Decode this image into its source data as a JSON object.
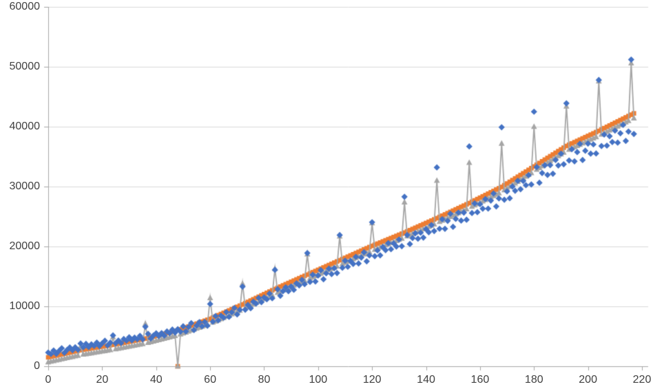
{
  "chart_data": {
    "type": "scatter",
    "title": "",
    "xlabel": "",
    "ylabel": "",
    "xlim": [
      0,
      220
    ],
    "ylim": [
      0,
      60000
    ],
    "x_ticks": [
      0,
      20,
      40,
      60,
      80,
      100,
      120,
      140,
      160,
      180,
      200,
      220
    ],
    "y_ticks": [
      0,
      10000,
      20000,
      30000,
      40000,
      50000,
      60000
    ],
    "grid": true,
    "legend": "none",
    "colors": {
      "series1_blue": "#4472C4",
      "series2_orange": "#ED7D31",
      "series3_gray": "#A5A5A5",
      "gridline": "#D9D9D9",
      "axis_line": "#A6A6A6",
      "tick_text": "#404040",
      "background": "#FFFFFF"
    },
    "x_start": 0,
    "x_step": 1,
    "series": [
      {
        "name": "series-2-orange",
        "marker": "square",
        "color": "#ED7D31",
        "line": false,
        "values": [
          1500,
          1600,
          1700,
          1800,
          1900,
          2000,
          2100,
          2200,
          2300,
          2400,
          2500,
          2600,
          2700,
          2775,
          2850,
          2925,
          3000,
          3075,
          3150,
          3225,
          3300,
          3375,
          3450,
          3525,
          3600,
          3685,
          3770,
          3855,
          3940,
          4025,
          4110,
          4195,
          4280,
          4365,
          4450,
          4535,
          4620,
          4735,
          4850,
          4965,
          5080,
          5195,
          5310,
          5425,
          5540,
          5655,
          5770,
          5885,
          0,
          6160,
          6320,
          6480,
          6640,
          6800,
          6960,
          7120,
          7280,
          7440,
          7600,
          7760,
          7920,
          8120,
          8320,
          8520,
          8720,
          8920,
          9120,
          9320,
          9520,
          9720,
          9920,
          10120,
          10320,
          10535,
          10750,
          10965,
          11180,
          11395,
          11610,
          11825,
          12040,
          12255,
          12470,
          12685,
          12900,
          13100,
          13300,
          13500,
          13700,
          13900,
          14100,
          14300,
          14500,
          14700,
          14900,
          15100,
          15300,
          15500,
          15700,
          15900,
          16100,
          16300,
          16500,
          16700,
          16900,
          17100,
          17300,
          17500,
          17700,
          17900,
          18100,
          18300,
          18500,
          18700,
          18900,
          19100,
          19300,
          19500,
          19700,
          19900,
          20100,
          20285,
          20470,
          20655,
          20840,
          21025,
          21210,
          21395,
          21580,
          21765,
          21950,
          22135,
          22320,
          22520,
          22720,
          22920,
          23120,
          23320,
          23520,
          23720,
          23920,
          24120,
          24320,
          24520,
          24720,
          24930,
          25140,
          25350,
          25560,
          25770,
          25980,
          26190,
          26400,
          26610,
          26820,
          27030,
          27240,
          27465,
          27690,
          27915,
          28140,
          28365,
          28590,
          28815,
          29040,
          29265,
          29490,
          29715,
          29940,
          30225,
          30510,
          30795,
          31080,
          31365,
          31650,
          31935,
          32220,
          32505,
          32790,
          33075,
          33360,
          33645,
          33930,
          34215,
          34500,
          34785,
          35070,
          35355,
          35640,
          35925,
          36210,
          36495,
          36780,
          36990,
          37200,
          37410,
          37620,
          37830,
          38040,
          38250,
          38460,
          38670,
          38880,
          39090,
          39300,
          39525,
          39750,
          39975,
          40200,
          40425,
          40650,
          40875,
          41100,
          41325,
          41550,
          41775,
          42000,
          42225
        ]
      },
      {
        "name": "series-3-gray",
        "marker": "triangle",
        "color": "#A5A5A5",
        "line": true,
        "values": [
          700,
          800,
          900,
          1000,
          1100,
          1200,
          1300,
          1400,
          1500,
          1600,
          1700,
          1800,
          3300,
          1975,
          2050,
          2125,
          2200,
          2275,
          2350,
          2425,
          2500,
          2575,
          2650,
          2725,
          4900,
          2885,
          2970,
          3055,
          3140,
          3225,
          3310,
          3395,
          3480,
          3565,
          3650,
          3735,
          7100,
          3935,
          4050,
          4165,
          4280,
          4395,
          4510,
          4625,
          4740,
          4855,
          4970,
          5085,
          0,
          5360,
          5520,
          5680,
          5840,
          6000,
          6160,
          6320,
          6480,
          6640,
          6800,
          6960,
          11400,
          7320,
          7520,
          7720,
          7920,
          8120,
          8320,
          8520,
          8720,
          8920,
          9120,
          9320,
          13800,
          9735,
          9950,
          10165,
          10380,
          10595,
          10810,
          11025,
          11240,
          11455,
          11670,
          11885,
          16300,
          12300,
          12500,
          12700,
          12900,
          13100,
          13300,
          13500,
          13700,
          13900,
          14100,
          14300,
          18700,
          14700,
          14900,
          15100,
          15300,
          15500,
          15700,
          15900,
          16100,
          16300,
          16500,
          16700,
          21700,
          17100,
          17300,
          17500,
          17700,
          17900,
          18100,
          18300,
          18500,
          18700,
          18900,
          19100,
          23900,
          19485,
          19670,
          19855,
          20040,
          20225,
          20410,
          20595,
          20780,
          20965,
          21150,
          21335,
          27400,
          21720,
          21920,
          22120,
          22320,
          22520,
          22720,
          22920,
          23120,
          23320,
          23520,
          23720,
          31000,
          24130,
          24340,
          24550,
          24760,
          24970,
          25180,
          25390,
          25600,
          25810,
          26020,
          26230,
          34000,
          26665,
          26890,
          27115,
          27340,
          27565,
          27790,
          28015,
          28240,
          28465,
          28690,
          28915,
          37200,
          29425,
          29710,
          29995,
          30280,
          30565,
          30850,
          31135,
          31420,
          31705,
          31990,
          32275,
          40000,
          32845,
          33130,
          33415,
          33700,
          33985,
          34270,
          34555,
          34840,
          35125,
          35410,
          35695,
          43400,
          36190,
          36400,
          36610,
          36820,
          37030,
          37240,
          37450,
          37660,
          37870,
          38080,
          38290,
          47600,
          38725,
          38950,
          39175,
          39400,
          39625,
          39850,
          40075,
          40300,
          40525,
          40750,
          40975,
          50600,
          41425
        ]
      },
      {
        "name": "series-1-blue",
        "marker": "diamond",
        "color": "#4472C4",
        "line": false,
        "values": [
          2300,
          2040,
          2630,
          2080,
          2570,
          3010,
          2250,
          2740,
          3140,
          2680,
          3170,
          2760,
          3800,
          3170,
          3740,
          3200,
          3670,
          3390,
          3960,
          3380,
          3840,
          4260,
          3480,
          3950,
          5150,
          3840,
          4310,
          3880,
          4550,
          4280,
          4850,
          4320,
          4790,
          4510,
          5080,
          4500,
          6600,
          5410,
          4640,
          5130,
          5510,
          5050,
          5540,
          5120,
          5810,
          5540,
          6130,
          5620,
          6200,
          5800,
          6680,
          5830,
          6560,
          7210,
          6060,
          6790,
          7370,
          6670,
          7400,
          6770,
          10400,
          7450,
          8390,
          7670,
          8450,
          8110,
          9040,
          8250,
          9030,
          9740,
          8650,
          9430,
          13300,
          9440,
          10240,
          9690,
          10790,
          10460,
          11410,
          10710,
          11500,
          11180,
          12130,
          11350,
          16100,
          12860,
          11770,
          12550,
          13180,
          12540,
          13320,
          12760,
          13840,
          13500,
          14430,
          13710,
          18900,
          14090,
          15280,
          14160,
          15150,
          16040,
          14530,
          15520,
          16300,
          15390,
          16380,
          15570,
          21900,
          16440,
          17620,
          16610,
          17600,
          17090,
          18270,
          17160,
          18150,
          19030,
          17520,
          18510,
          24050,
          18380,
          19350,
          18530,
          19910,
          19390,
          20560,
          19540,
          20520,
          19990,
          21170,
          20050,
          28300,
          21920,
          20410,
          21410,
          22200,
          21300,
          22300,
          21490,
          22890,
          22380,
          23580,
          22580,
          33200,
          22960,
          24560,
          22950,
          24270,
          25460,
          23290,
          24610,
          25660,
          24320,
          25650,
          24460,
          36700,
          25580,
          27190,
          25730,
          27070,
          26310,
          27920,
          26320,
          27660,
          28850,
          26690,
          28030,
          39900,
          27810,
          29200,
          28060,
          30010,
          29300,
          30970,
          29560,
          30940,
          30230,
          31900,
          30350,
          42500,
          33260,
          30640,
          32260,
          33550,
          31950,
          33580,
          32150,
          34450,
          33530,
          35500,
          33730,
          43900,
          34360,
          36240,
          34220,
          35760,
          37140,
          34430,
          35980,
          37180,
          35500,
          37040,
          35530,
          47800,
          36770,
          38680,
          36840,
          38410,
          37430,
          39340,
          37340,
          38900,
          40300,
          37620,
          39190,
          51200,
          38780
        ]
      }
    ]
  }
}
